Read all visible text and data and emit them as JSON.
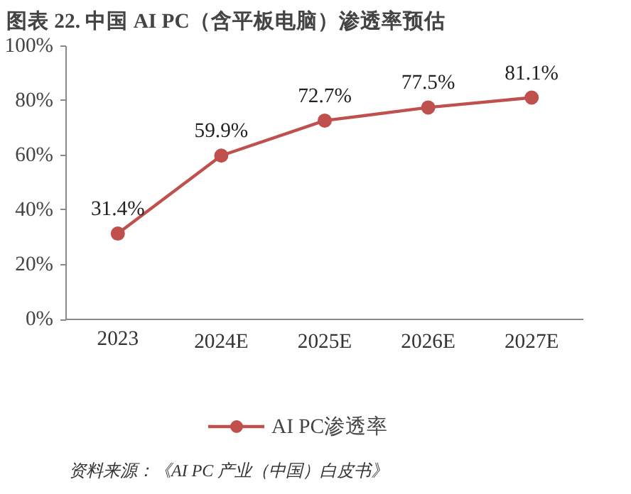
{
  "chart_data": {
    "type": "line",
    "title": "图表 22. 中国 AI PC（含平板电脑）渗透率预估",
    "categories": [
      "2023",
      "2024E",
      "2025E",
      "2026E",
      "2027E"
    ],
    "series": [
      {
        "name": "AI PC渗透率",
        "color": "#c0504d",
        "values": [
          31.4,
          59.9,
          72.7,
          77.5,
          81.1
        ],
        "value_labels": [
          "31.4%",
          "59.9%",
          "72.7%",
          "77.5%",
          "81.1%"
        ]
      }
    ],
    "ylim": [
      0,
      100
    ],
    "yticks": [
      {
        "value": 0,
        "label": "0%"
      },
      {
        "value": 20,
        "label": "20%"
      },
      {
        "value": 40,
        "label": "40%"
      },
      {
        "value": 60,
        "label": "60%"
      },
      {
        "value": 80,
        "label": "80%"
      },
      {
        "value": 100,
        "label": "100%"
      }
    ],
    "grid": false,
    "legend": "bottom",
    "marker": "circle",
    "line_style": "solid",
    "annotations": [
      "资料来源：《AI PC 产业（中国）白皮书》"
    ]
  }
}
